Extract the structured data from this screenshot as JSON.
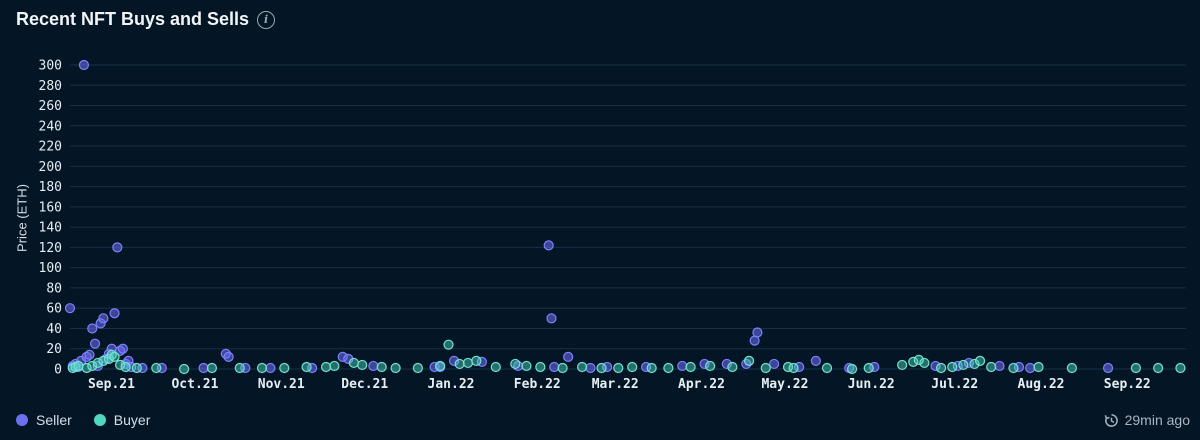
{
  "header": {
    "title": "Recent NFT Buys and Sells",
    "info_icon": "info-icon"
  },
  "legend": {
    "seller": "Seller",
    "buyer": "Buyer"
  },
  "footer": {
    "updated": "29min ago",
    "icon": "refresh-clock-icon"
  },
  "colors": {
    "background": "#041626",
    "seller": "#6b6ff0",
    "buyer": "#52d6c0",
    "grid": "#163047"
  },
  "chart_data": {
    "type": "scatter",
    "title": "Recent NFT Buys and Sells",
    "xlabel": "",
    "ylabel": "Price (ETH)",
    "ylim": [
      0,
      300
    ],
    "yticks": [
      0,
      20,
      40,
      60,
      80,
      100,
      120,
      140,
      160,
      180,
      200,
      220,
      240,
      260,
      280,
      300
    ],
    "xlim": [
      "2021-08-25",
      "2022-09-30"
    ],
    "xticks": [
      {
        "label": "Sep.21",
        "date": "2021-09-01"
      },
      {
        "label": "Oct.21",
        "date": "2021-10-01"
      },
      {
        "label": "Nov.21",
        "date": "2021-11-01"
      },
      {
        "label": "Dec.21",
        "date": "2021-12-01"
      },
      {
        "label": "Jan.22",
        "date": "2022-01-01"
      },
      {
        "label": "Feb.22",
        "date": "2022-02-01"
      },
      {
        "label": "Mar.22",
        "date": "2022-03-01"
      },
      {
        "label": "Apr.22",
        "date": "2022-04-01"
      },
      {
        "label": "May.22",
        "date": "2022-05-01"
      },
      {
        "label": "Jun.22",
        "date": "2022-06-01"
      },
      {
        "label": "Jul.22",
        "date": "2022-07-01"
      },
      {
        "label": "Aug.22",
        "date": "2022-08-01"
      },
      {
        "label": "Sep.22",
        "date": "2022-09-01"
      }
    ],
    "series": [
      {
        "name": "Seller",
        "points": [
          [
            "2021-08-25",
            60
          ],
          [
            "2021-08-26",
            3
          ],
          [
            "2021-08-27",
            5
          ],
          [
            "2021-08-28",
            2
          ],
          [
            "2021-08-29",
            8
          ],
          [
            "2021-08-30",
            300
          ],
          [
            "2021-08-31",
            12
          ],
          [
            "2021-09-01",
            14
          ],
          [
            "2021-09-02",
            40
          ],
          [
            "2021-09-03",
            25
          ],
          [
            "2021-09-04",
            3
          ],
          [
            "2021-09-05",
            45
          ],
          [
            "2021-09-06",
            50
          ],
          [
            "2021-09-07",
            10
          ],
          [
            "2021-09-08",
            15
          ],
          [
            "2021-09-09",
            20
          ],
          [
            "2021-09-10",
            55
          ],
          [
            "2021-09-11",
            120
          ],
          [
            "2021-09-12",
            18
          ],
          [
            "2021-09-13",
            20
          ],
          [
            "2021-09-14",
            5
          ],
          [
            "2021-09-15",
            8
          ],
          [
            "2021-09-16",
            2
          ],
          [
            "2021-09-20",
            1
          ],
          [
            "2021-09-27",
            1
          ],
          [
            "2021-10-12",
            1
          ],
          [
            "2021-10-20",
            15
          ],
          [
            "2021-10-21",
            12
          ],
          [
            "2021-10-27",
            1
          ],
          [
            "2021-11-05",
            1
          ],
          [
            "2021-11-20",
            1
          ],
          [
            "2021-12-01",
            12
          ],
          [
            "2021-12-03",
            10
          ],
          [
            "2021-12-12",
            3
          ],
          [
            "2022-01-03",
            2
          ],
          [
            "2022-01-05",
            2
          ],
          [
            "2022-01-10",
            8
          ],
          [
            "2022-01-20",
            7
          ],
          [
            "2022-02-02",
            3
          ],
          [
            "2022-02-13",
            122
          ],
          [
            "2022-02-14",
            50
          ],
          [
            "2022-02-15",
            2
          ],
          [
            "2022-02-20",
            12
          ],
          [
            "2022-02-28",
            1
          ],
          [
            "2022-03-06",
            2
          ],
          [
            "2022-03-20",
            2
          ],
          [
            "2022-04-02",
            3
          ],
          [
            "2022-04-10",
            5
          ],
          [
            "2022-04-18",
            5
          ],
          [
            "2022-04-25",
            5
          ],
          [
            "2022-04-28",
            28
          ],
          [
            "2022-04-29",
            36
          ],
          [
            "2022-05-05",
            5
          ],
          [
            "2022-05-14",
            2
          ],
          [
            "2022-05-20",
            8
          ],
          [
            "2022-06-01",
            1
          ],
          [
            "2022-06-10",
            2
          ],
          [
            "2022-07-02",
            3
          ],
          [
            "2022-07-10",
            3
          ],
          [
            "2022-07-14",
            6
          ],
          [
            "2022-07-25",
            3
          ],
          [
            "2022-08-01",
            2
          ],
          [
            "2022-08-05",
            1
          ],
          [
            "2022-09-02",
            1
          ]
        ]
      },
      {
        "name": "Buyer",
        "points": [
          [
            "2021-08-26",
            1
          ],
          [
            "2021-08-27",
            2
          ],
          [
            "2021-08-28",
            3
          ],
          [
            "2021-08-31",
            1
          ],
          [
            "2021-09-02",
            3
          ],
          [
            "2021-09-04",
            6
          ],
          [
            "2021-09-06",
            8
          ],
          [
            "2021-09-08",
            10
          ],
          [
            "2021-09-09",
            14
          ],
          [
            "2021-09-10",
            12
          ],
          [
            "2021-09-12",
            4
          ],
          [
            "2021-09-14",
            2
          ],
          [
            "2021-09-18",
            1
          ],
          [
            "2021-09-25",
            1
          ],
          [
            "2021-10-05",
            0
          ],
          [
            "2021-10-15",
            1
          ],
          [
            "2021-10-25",
            1
          ],
          [
            "2021-11-02",
            1
          ],
          [
            "2021-11-10",
            1
          ],
          [
            "2021-11-18",
            2
          ],
          [
            "2021-11-25",
            2
          ],
          [
            "2021-11-28",
            3
          ],
          [
            "2021-12-05",
            6
          ],
          [
            "2021-12-08",
            4
          ],
          [
            "2021-12-15",
            2
          ],
          [
            "2021-12-20",
            1
          ],
          [
            "2021-12-28",
            1
          ],
          [
            "2022-01-05",
            3
          ],
          [
            "2022-01-08",
            24
          ],
          [
            "2022-01-12",
            5
          ],
          [
            "2022-01-15",
            6
          ],
          [
            "2022-01-18",
            8
          ],
          [
            "2022-01-25",
            2
          ],
          [
            "2022-02-01",
            5
          ],
          [
            "2022-02-05",
            3
          ],
          [
            "2022-02-10",
            2
          ],
          [
            "2022-02-18",
            1
          ],
          [
            "2022-02-25",
            2
          ],
          [
            "2022-03-04",
            1
          ],
          [
            "2022-03-10",
            1
          ],
          [
            "2022-03-15",
            2
          ],
          [
            "2022-03-22",
            1
          ],
          [
            "2022-03-28",
            1
          ],
          [
            "2022-04-05",
            2
          ],
          [
            "2022-04-12",
            3
          ],
          [
            "2022-04-20",
            2
          ],
          [
            "2022-04-26",
            8
          ],
          [
            "2022-05-02",
            1
          ],
          [
            "2022-05-10",
            2
          ],
          [
            "2022-05-12",
            1
          ],
          [
            "2022-05-24",
            1
          ],
          [
            "2022-06-02",
            0
          ],
          [
            "2022-06-08",
            1
          ],
          [
            "2022-06-20",
            4
          ],
          [
            "2022-06-24",
            7
          ],
          [
            "2022-06-26",
            9
          ],
          [
            "2022-06-28",
            6
          ],
          [
            "2022-07-04",
            1
          ],
          [
            "2022-07-08",
            2
          ],
          [
            "2022-07-12",
            4
          ],
          [
            "2022-07-16",
            5
          ],
          [
            "2022-07-18",
            8
          ],
          [
            "2022-07-22",
            2
          ],
          [
            "2022-07-30",
            1
          ],
          [
            "2022-08-08",
            2
          ],
          [
            "2022-08-20",
            1
          ],
          [
            "2022-09-12",
            1
          ],
          [
            "2022-09-20",
            1
          ],
          [
            "2022-09-28",
            1
          ]
        ]
      }
    ]
  }
}
